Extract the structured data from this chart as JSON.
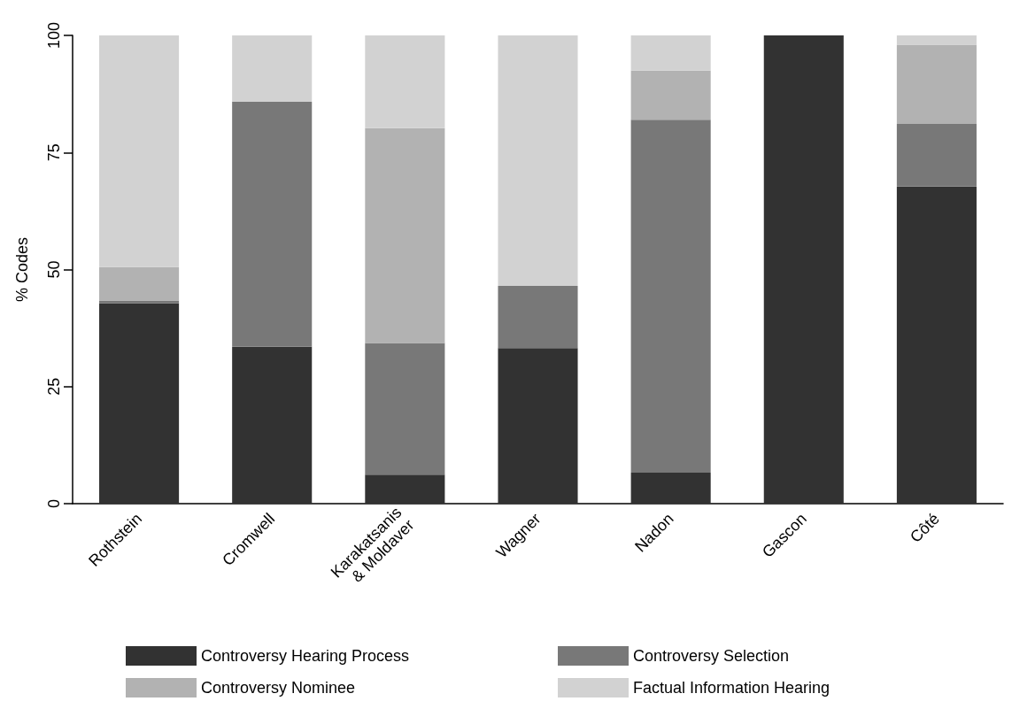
{
  "chart_data": {
    "type": "bar",
    "stacked": true,
    "ylabel": "% Codes",
    "categories": [
      "Rothstein",
      "Cromwell",
      "Karakatsanis\n& Moldaver",
      "Wagner",
      "Nadon",
      "Gascon",
      "Côté"
    ],
    "series": [
      {
        "name": "Controversy Hearing Process",
        "color": "#323232",
        "values": [
          42.8,
          33.5,
          6.2,
          33.2,
          6.6,
          100,
          67.7
        ]
      },
      {
        "name": "Controversy Selection",
        "color": "#787878",
        "values": [
          0.6,
          52.3,
          28.1,
          13.3,
          75.4,
          0,
          13.4
        ]
      },
      {
        "name": "Controversy Nominee",
        "color": "#b2b2b2",
        "values": [
          7.1,
          0,
          45.9,
          0,
          10.5,
          0,
          16.9
        ]
      },
      {
        "name": "Factual Information Hearing",
        "color": "#d2d2d2",
        "values": [
          49.5,
          14.2,
          19.8,
          53.5,
          7.5,
          0,
          2.0
        ]
      }
    ],
    "ylim": [
      0,
      100
    ],
    "yticks": [
      0,
      25,
      50,
      75,
      100
    ],
    "grid": false,
    "legend": "bottom"
  }
}
